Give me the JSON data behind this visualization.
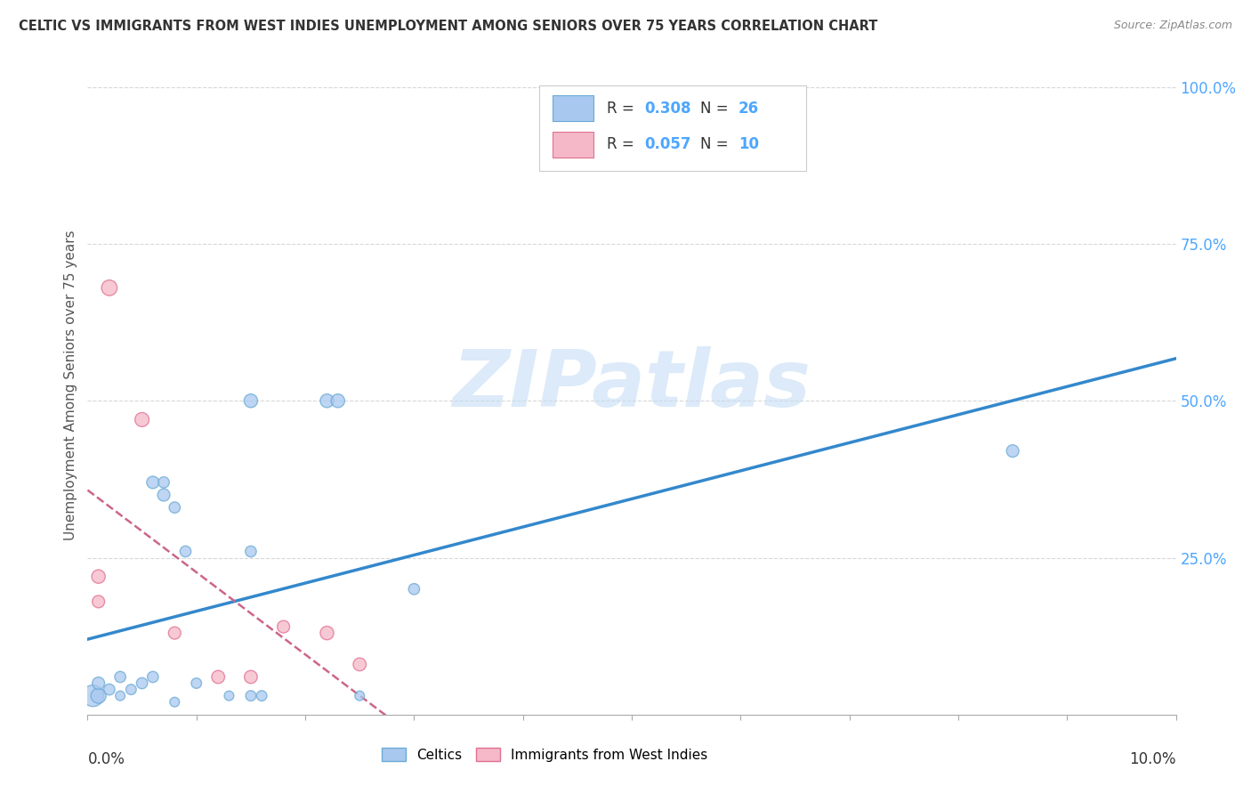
{
  "title": "CELTIC VS IMMIGRANTS FROM WEST INDIES UNEMPLOYMENT AMONG SENIORS OVER 75 YEARS CORRELATION CHART",
  "source": "Source: ZipAtlas.com",
  "ylabel": "Unemployment Among Seniors over 75 years",
  "xlim": [
    0.0,
    0.1
  ],
  "ylim": [
    0.0,
    1.05
  ],
  "celtics_color": "#a8c8f0",
  "celtics_edge_color": "#6aaad4",
  "wi_color": "#f5b8c8",
  "wi_edge_color": "#e07090",
  "trendline_celtics_color": "#3388cc",
  "trendline_wi_color": "#cc6688",
  "legend_r_celtics": "0.308",
  "legend_n_celtics": "26",
  "legend_r_wi": "0.057",
  "legend_n_wi": "10",
  "celtics_x": [
    0.0005,
    0.001,
    0.001,
    0.002,
    0.003,
    0.003,
    0.004,
    0.005,
    0.006,
    0.006,
    0.007,
    0.007,
    0.008,
    0.008,
    0.009,
    0.01,
    0.013,
    0.015,
    0.022,
    0.023,
    0.015,
    0.025,
    0.03,
    0.085,
    0.015,
    0.016
  ],
  "celtics_y": [
    0.03,
    0.03,
    0.05,
    0.04,
    0.06,
    0.03,
    0.04,
    0.05,
    0.06,
    0.37,
    0.35,
    0.37,
    0.33,
    0.02,
    0.26,
    0.05,
    0.03,
    0.5,
    0.5,
    0.5,
    0.26,
    0.03,
    0.2,
    0.42,
    0.03,
    0.03
  ],
  "celtics_sizes": [
    300,
    150,
    100,
    80,
    80,
    60,
    70,
    80,
    80,
    100,
    100,
    80,
    80,
    60,
    80,
    70,
    60,
    120,
    120,
    120,
    80,
    60,
    80,
    100,
    70,
    70
  ],
  "wi_x": [
    0.001,
    0.001,
    0.002,
    0.005,
    0.008,
    0.012,
    0.015,
    0.018,
    0.022,
    0.025
  ],
  "wi_y": [
    0.22,
    0.18,
    0.68,
    0.47,
    0.13,
    0.06,
    0.06,
    0.14,
    0.13,
    0.08
  ],
  "wi_sizes": [
    120,
    100,
    160,
    130,
    100,
    110,
    110,
    100,
    120,
    110
  ],
  "ytick_values": [
    0.25,
    0.5,
    0.75,
    1.0
  ],
  "ytick_labels": [
    "25.0%",
    "50.0%",
    "75.0%",
    "100.0%"
  ],
  "right_tick_color": "#4da6ff",
  "grid_color": "#d8d8d8",
  "bg_color": "#ffffff",
  "watermark_color": "#c5ddf5"
}
